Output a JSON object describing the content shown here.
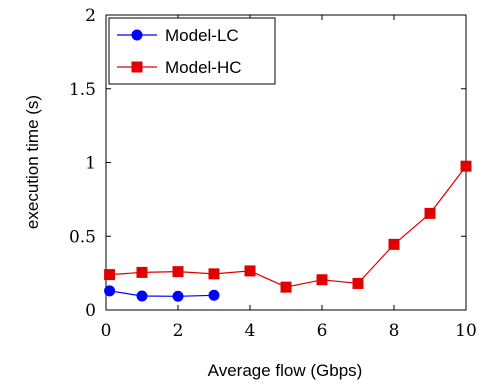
{
  "chart_data": {
    "type": "line",
    "xlabel": "Average flow (Gbps)",
    "ylabel": "execution time (s)",
    "xlim": [
      0,
      10
    ],
    "ylim": [
      0,
      2
    ],
    "xticks": [
      0,
      2,
      4,
      6,
      8,
      10
    ],
    "yticks": [
      0,
      0.5,
      1,
      1.5,
      2
    ],
    "xtick_labels": [
      "0",
      "2",
      "4",
      "6",
      "8",
      "10"
    ],
    "ytick_labels": [
      "0",
      "0.5",
      "1",
      "1.5",
      "2"
    ],
    "grid": false,
    "legend_position": "top-left",
    "series": [
      {
        "name": "Model-LC",
        "color": "#0000ff",
        "marker": "circle",
        "x": [
          0.1,
          1,
          2,
          3
        ],
        "y": [
          0.13,
          0.095,
          0.093,
          0.1
        ]
      },
      {
        "name": "Model-HC",
        "color": "#e00000",
        "marker": "square",
        "x": [
          0.1,
          1,
          2,
          3,
          4,
          5,
          6,
          7,
          8,
          9,
          10
        ],
        "y": [
          0.24,
          0.255,
          0.26,
          0.245,
          0.265,
          0.155,
          0.205,
          0.18,
          0.445,
          0.655,
          0.975
        ]
      }
    ]
  }
}
